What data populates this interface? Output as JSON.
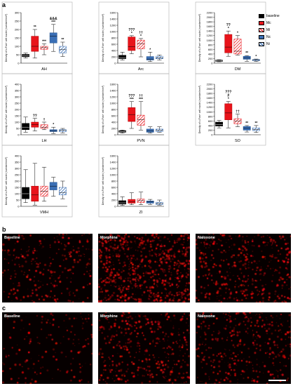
{
  "figure": {
    "panel_a": "a",
    "panel_b": "b",
    "panel_c": "c",
    "ylabel": "Density of c-Fos+ cell nuclei (number/mm²)",
    "legend": [
      {
        "label": "baseline",
        "color": "#000000",
        "pattern": "solid"
      },
      {
        "label": "Mc",
        "color": "#e8141b",
        "pattern": "solid"
      },
      {
        "label": "Mi",
        "color": "#e8141b",
        "pattern": "hatch"
      },
      {
        "label": "Nc",
        "color": "#3a6fb5",
        "pattern": "solid"
      },
      {
        "label": "Ni",
        "color": "#3a6fb5",
        "pattern": "hatch"
      }
    ],
    "photos_b": [
      "Baseline",
      "Morphine",
      "Naloxone"
    ],
    "photos_c": [
      "Baseline",
      "Morphine",
      "Naloxone"
    ]
  },
  "chart_data": [
    {
      "type": "box",
      "region": "AH",
      "ylim": [
        0,
        300
      ],
      "yticks": [
        0,
        50,
        100,
        150,
        200,
        250,
        300
      ],
      "boxes": [
        [
          30,
          38,
          44,
          52,
          60
        ],
        [
          30,
          70,
          100,
          160,
          200
        ],
        [
          50,
          82,
          92,
          100,
          115
        ],
        [
          70,
          120,
          160,
          180,
          230
        ],
        [
          40,
          60,
          80,
          100,
          125
        ]
      ],
      "annot": [
        "",
        "**",
        "***",
        "&&&\n***",
        "**"
      ]
    },
    {
      "type": "box",
      "region": "Arc",
      "ylim": [
        0,
        1600
      ],
      "yticks": [
        0,
        200,
        400,
        600,
        800,
        1000,
        1200,
        1400,
        1600
      ],
      "boxes": [
        [
          100,
          140,
          170,
          250,
          350
        ],
        [
          300,
          400,
          520,
          830,
          870
        ],
        [
          200,
          450,
          620,
          730,
          780
        ],
        [
          50,
          100,
          130,
          210,
          350
        ],
        [
          100,
          140,
          170,
          220,
          260
        ]
      ],
      "annot": [
        "",
        "??? \n*",
        "†† \n*",
        "*",
        ""
      ]
    },
    {
      "type": "box",
      "region": "DM",
      "ylim": [
        0,
        2200
      ],
      "yticks": [
        0,
        200,
        400,
        600,
        800,
        1000,
        1200,
        1400,
        1600,
        1800,
        2000,
        2200
      ],
      "boxes": [
        [
          60,
          80,
          110,
          130,
          150
        ],
        [
          300,
          450,
          700,
          1250,
          1400
        ],
        [
          350,
          400,
          520,
          1050,
          1200
        ],
        [
          80,
          170,
          220,
          300,
          330
        ],
        [
          70,
          100,
          130,
          160,
          180
        ]
      ],
      "annot": [
        "",
        "?? \n*",
        "*",
        "**",
        "*"
      ]
    },
    {
      "type": "box",
      "region": "LH",
      "ylim": [
        0,
        400
      ],
      "yticks": [
        0,
        50,
        100,
        150,
        200,
        250,
        300,
        350,
        400
      ],
      "boxes": [
        [
          20,
          40,
          60,
          90,
          140
        ],
        [
          30,
          60,
          80,
          100,
          130
        ],
        [
          40,
          50,
          60,
          80,
          100
        ],
        [
          10,
          25,
          30,
          40,
          60
        ],
        [
          15,
          25,
          35,
          40,
          50
        ]
      ],
      "annot": [
        "",
        "??",
        "†",
        "*",
        ""
      ]
    },
    {
      "type": "box",
      "region": "PVN",
      "ylim": [
        0,
        1600
      ],
      "yticks": [
        0,
        200,
        400,
        600,
        800,
        1000,
        1200,
        1400,
        1600
      ],
      "boxes": [
        [
          50,
          80,
          100,
          130,
          150
        ],
        [
          200,
          420,
          640,
          860,
          1050
        ],
        [
          150,
          300,
          480,
          620,
          1050
        ],
        [
          50,
          80,
          120,
          180,
          250
        ],
        [
          80,
          100,
          140,
          180,
          250
        ]
      ],
      "annot": [
        "",
        "??? \n***",
        "†† \n***",
        "",
        ""
      ]
    },
    {
      "type": "box",
      "region": "SO",
      "ylim": [
        0,
        2200
      ],
      "yticks": [
        0,
        200,
        400,
        600,
        800,
        1000,
        1200,
        1400,
        1600,
        1800,
        2000,
        2200
      ],
      "boxes": [
        [
          300,
          380,
          450,
          550,
          620
        ],
        [
          300,
          650,
          950,
          1350,
          1450
        ],
        [
          350,
          480,
          600,
          700,
          900
        ],
        [
          120,
          200,
          280,
          360,
          400
        ],
        [
          100,
          180,
          230,
          300,
          400
        ]
      ],
      "annot": [
        "",
        "??? \n#\n*",
        "††",
        "**",
        "**"
      ]
    },
    {
      "type": "box",
      "region": "VMH",
      "ylim": [
        0,
        400
      ],
      "yticks": [
        0,
        50,
        100,
        150,
        200,
        250,
        300,
        350,
        400
      ],
      "boxes": [
        [
          30,
          60,
          100,
          150,
          290
        ],
        [
          10,
          40,
          90,
          160,
          340
        ],
        [
          40,
          80,
          120,
          160,
          310
        ],
        [
          80,
          130,
          160,
          190,
          230
        ],
        [
          60,
          90,
          110,
          150,
          200
        ]
      ],
      "annot": [
        "",
        "",
        "",
        "",
        ""
      ]
    },
    {
      "type": "box",
      "region": "ZI",
      "ylim": [
        0,
        1600
      ],
      "yticks": [
        0,
        200,
        400,
        600,
        800,
        1000,
        1200,
        1400,
        1600
      ],
      "boxes": [
        [
          30,
          70,
          110,
          180,
          300
        ],
        [
          50,
          100,
          150,
          220,
          430
        ],
        [
          50,
          120,
          180,
          230,
          450
        ],
        [
          60,
          100,
          140,
          170,
          220
        ],
        [
          40,
          60,
          90,
          130,
          200
        ]
      ],
      "annot": [
        "",
        "",
        "",
        "",
        ""
      ]
    }
  ]
}
